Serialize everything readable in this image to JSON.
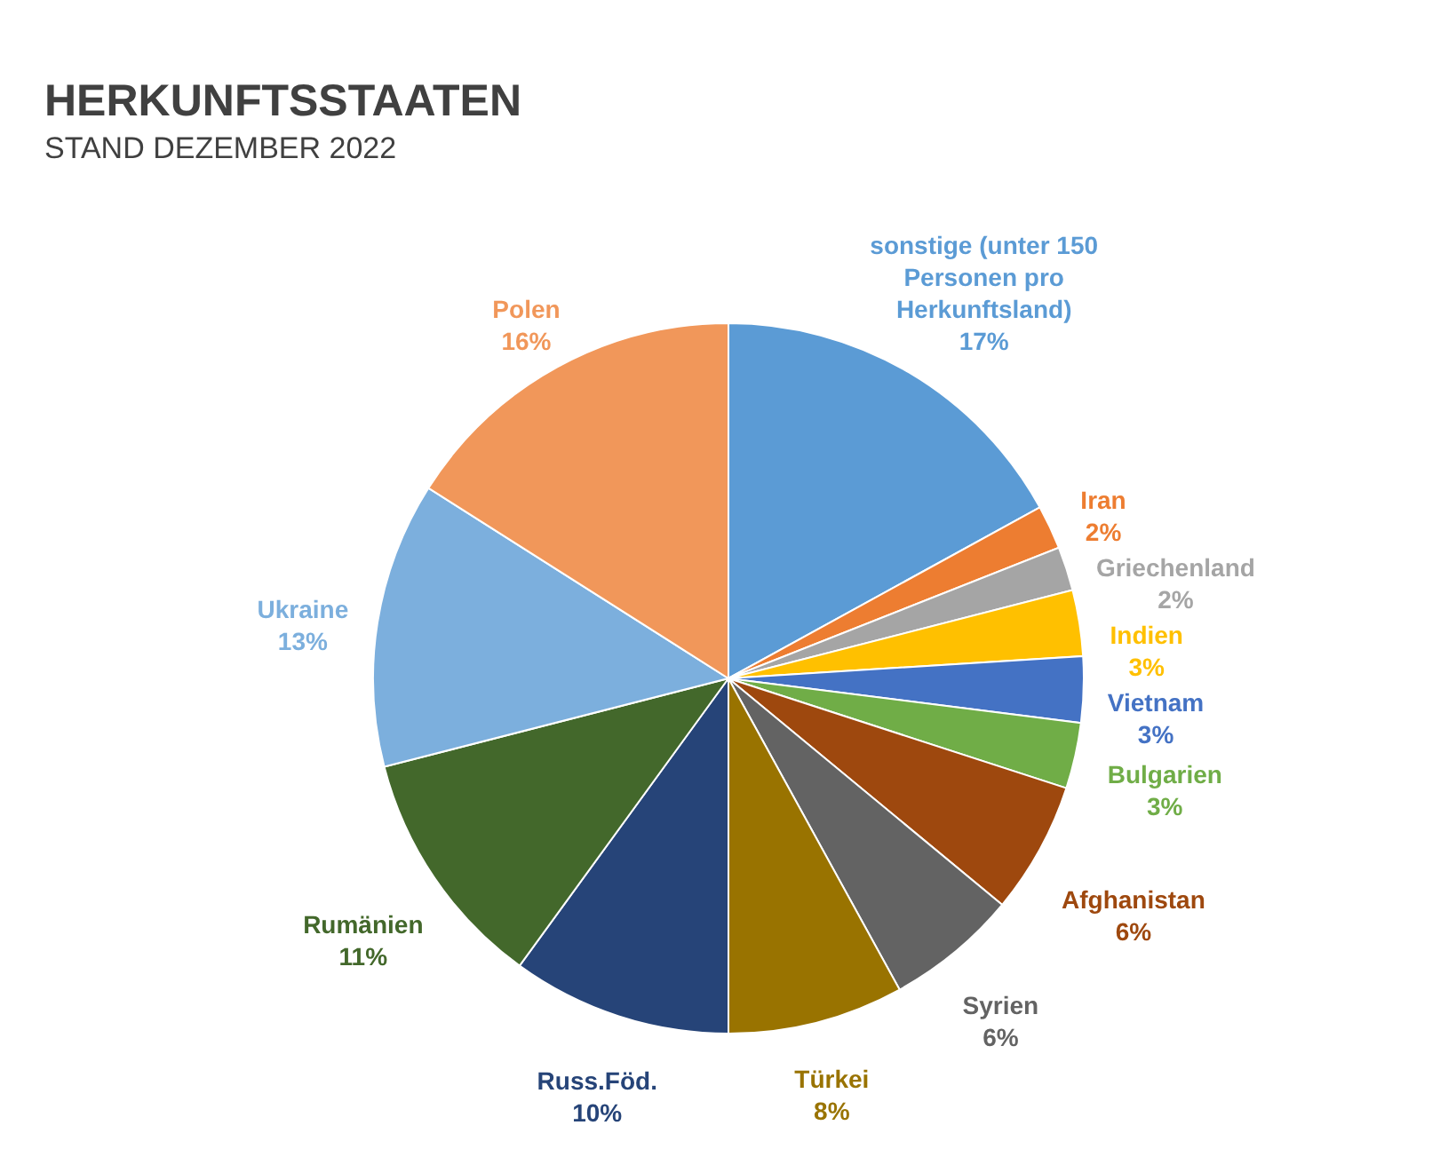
{
  "chart_data": {
    "type": "pie",
    "title": "HERKUNFTSSTAATEN",
    "subtitle": "STAND DEZEMBER 2022",
    "categories": [
      "sonstige (unter 150 Personen pro Herkunftsland)",
      "Iran",
      "Griechenland",
      "Indien",
      "Vietnam",
      "Bulgarien",
      "Afghanistan",
      "Syrien",
      "Türkei",
      "Russ.Föd.",
      "Rumänien",
      "Ukraine",
      "Polen"
    ],
    "values": [
      17,
      2,
      2,
      3,
      3,
      3,
      6,
      6,
      8,
      10,
      11,
      13,
      16
    ],
    "value_labels": [
      "17%",
      "2%",
      "2%",
      "3%",
      "3%",
      "3%",
      "6%",
      "6%",
      "8%",
      "10%",
      "11%",
      "13%",
      "16%"
    ],
    "colors": [
      "#5b9bd5",
      "#ed7d31",
      "#a5a5a5",
      "#ffc000",
      "#4472c4",
      "#70ad47",
      "#9e480e",
      "#636363",
      "#997300",
      "#264478",
      "#43682b",
      "#7cafdd",
      "#f1975a"
    ],
    "legend": false
  }
}
